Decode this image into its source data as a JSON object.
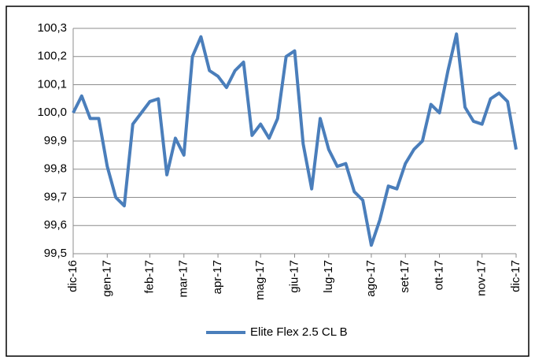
{
  "chart_data": {
    "type": "line",
    "categories": [
      "dic-16",
      null,
      null,
      null,
      "gen-17",
      null,
      null,
      null,
      null,
      "feb-17",
      null,
      null,
      null,
      "mar-17",
      null,
      null,
      null,
      "apr-17",
      null,
      null,
      null,
      null,
      "mag-17",
      null,
      null,
      null,
      "giu-17",
      null,
      null,
      null,
      "lug-17",
      null,
      null,
      null,
      null,
      "ago-17",
      null,
      null,
      null,
      "set-17",
      null,
      null,
      null,
      "ott-17",
      null,
      null,
      null,
      null,
      "nov-17",
      null,
      null,
      null,
      "dic-17"
    ],
    "series": [
      {
        "name": "Elite Flex 2.5 CL B",
        "color": "#4a7ebb",
        "values": [
          100.0,
          100.06,
          99.98,
          99.98,
          99.81,
          99.7,
          99.67,
          99.96,
          100.0,
          100.04,
          100.05,
          99.78,
          99.91,
          99.85,
          100.2,
          100.27,
          100.15,
          100.13,
          100.09,
          100.15,
          100.18,
          99.92,
          99.96,
          99.91,
          99.98,
          100.2,
          100.22,
          99.89,
          99.73,
          99.98,
          99.87,
          99.81,
          99.82,
          99.72,
          99.69,
          99.53,
          99.62,
          99.74,
          99.73,
          99.82,
          99.87,
          99.9,
          100.03,
          100.0,
          100.15,
          100.28,
          100.02,
          99.97,
          99.96,
          100.05,
          100.07,
          100.04,
          99.87
        ]
      }
    ],
    "ylim": [
      99.5,
      100.3
    ],
    "yticks": [
      {
        "value": 99.5,
        "label": "99,5"
      },
      {
        "value": 99.6,
        "label": "99,6"
      },
      {
        "value": 99.7,
        "label": "99,7"
      },
      {
        "value": 99.8,
        "label": "99,8"
      },
      {
        "value": 99.9,
        "label": "99,9"
      },
      {
        "value": 100.0,
        "label": "100,0"
      },
      {
        "value": 100.1,
        "label": "100,1"
      },
      {
        "value": 100.2,
        "label": "100,2"
      },
      {
        "value": 100.3,
        "label": "100,3"
      }
    ],
    "grid": true,
    "legend": "bottom"
  }
}
